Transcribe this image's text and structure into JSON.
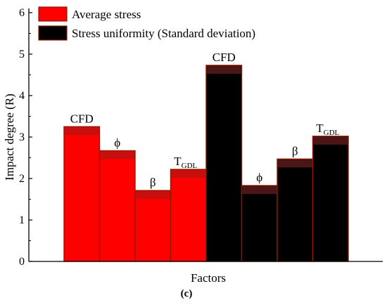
{
  "chart_data": {
    "type": "bar",
    "title": "",
    "xlabel": "Factors",
    "ylabel": "Impact degree (R)",
    "panel_label": "(c)",
    "ylim": [
      0,
      6
    ],
    "yticks": [
      "0",
      "1",
      "2",
      "3",
      "4",
      "5",
      "6"
    ],
    "legend_position": "top-left",
    "series": [
      {
        "name": "Average stress",
        "color": "#ff0000",
        "highlight": "#c01010",
        "bars": [
          {
            "label": "CFD",
            "sub": "",
            "value": 3.25
          },
          {
            "label": "ϕ",
            "sub": "",
            "value": 2.67
          },
          {
            "label": "β",
            "sub": "",
            "value": 1.71
          },
          {
            "label": "T",
            "sub": "GDL",
            "value": 2.22
          }
        ]
      },
      {
        "name": "Stress uniformity (Standard deviation)",
        "color": "#000000",
        "highlight": "#5a1a1a",
        "bars": [
          {
            "label": "CFD",
            "sub": "",
            "value": 4.73
          },
          {
            "label": "ϕ",
            "sub": "",
            "value": 1.83
          },
          {
            "label": "β",
            "sub": "",
            "value": 2.47
          },
          {
            "label": "T",
            "sub": "GDL",
            "value": 3.02
          }
        ]
      }
    ]
  }
}
